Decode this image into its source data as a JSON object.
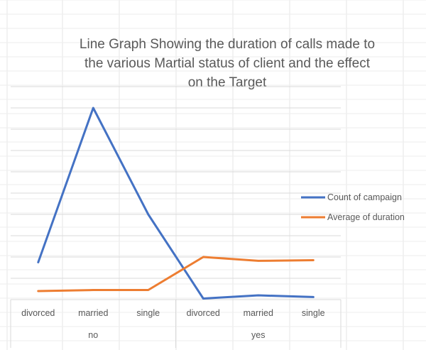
{
  "colors": {
    "count_series": "#4472C4",
    "duration_series": "#ED7D31",
    "gridline": "#D9D9D9",
    "text": "#595959"
  },
  "chart_data": {
    "type": "line",
    "title_lines": [
      "Line Graph Showing the duration of calls made to",
      "the various Martial status of client and the effect",
      "on the Target"
    ],
    "categories": [
      {
        "label": "divorced",
        "group": "no"
      },
      {
        "label": "married",
        "group": "no"
      },
      {
        "label": "single",
        "group": "no"
      },
      {
        "label": "divorced",
        "group": "yes"
      },
      {
        "label": "married",
        "group": "yes"
      },
      {
        "label": "single",
        "group": "yes"
      }
    ],
    "groups": [
      "no",
      "yes"
    ],
    "series": [
      {
        "name": "Count of campaign",
        "color": "#4472C4",
        "values": [
          1.75,
          9.0,
          4.0,
          0.05,
          0.2,
          0.12
        ]
      },
      {
        "name": "Average of duration",
        "color": "#ED7D31",
        "values": [
          0.4,
          0.45,
          0.45,
          2.0,
          1.82,
          1.85
        ]
      }
    ],
    "ylim": [
      0,
      10
    ],
    "gridlines": true,
    "y_tick_labels_visible": false,
    "legend_position": "right"
  }
}
